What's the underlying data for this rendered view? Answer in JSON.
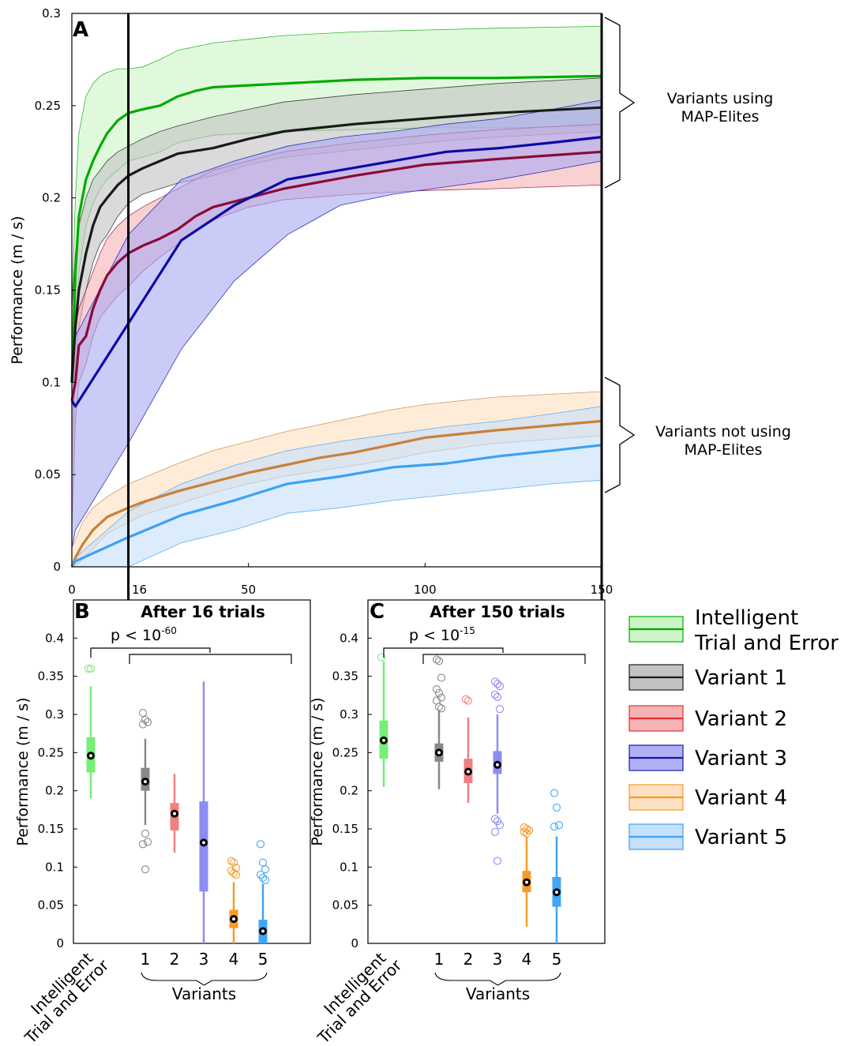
{
  "chart_data": [
    {
      "panel": "A",
      "type": "line",
      "ylabel": "Performance (m / s)",
      "xlim": [
        0,
        150
      ],
      "ylim": [
        0,
        0.3
      ],
      "xticks": [
        0,
        16,
        50,
        100,
        150
      ],
      "xtick_labels": [
        "0",
        "16",
        "50",
        "100",
        "150"
      ],
      "yticks": [
        0,
        0.05,
        0.1,
        0.15,
        0.2,
        0.25,
        0.3
      ],
      "ytick_labels": [
        "0",
        "0.05",
        "0.1",
        "0.15",
        "0.2",
        "0.25",
        "0.3"
      ],
      "vline_x": 16,
      "series": [
        {
          "name": "Intelligent Trial and Error",
          "color": "#00aa00",
          "fill": "#ccf5c7",
          "x": [
            0,
            1,
            2,
            4,
            6,
            8,
            10,
            13,
            16,
            20,
            25,
            30,
            35,
            40,
            50,
            60,
            80,
            100,
            120,
            150
          ],
          "y": [
            0.1,
            0.16,
            0.19,
            0.21,
            0.22,
            0.228,
            0.235,
            0.242,
            0.246,
            0.248,
            0.25,
            0.255,
            0.258,
            0.26,
            0.261,
            0.262,
            0.264,
            0.265,
            0.265,
            0.266
          ],
          "lo": [
            0.05,
            0.13,
            0.16,
            0.185,
            0.197,
            0.205,
            0.21,
            0.215,
            0.22,
            0.222,
            0.225,
            0.23,
            0.232,
            0.234,
            0.235,
            0.236,
            0.237,
            0.238,
            0.238,
            0.239
          ],
          "hi": [
            0.14,
            0.2,
            0.235,
            0.255,
            0.262,
            0.266,
            0.268,
            0.27,
            0.27,
            0.271,
            0.275,
            0.28,
            0.282,
            0.284,
            0.286,
            0.288,
            0.29,
            0.291,
            0.292,
            0.293
          ]
        },
        {
          "name": "Variant 1",
          "color": "#1a1a1a",
          "fill": "#c2c2c2",
          "x": [
            0,
            1,
            2,
            4,
            6,
            8,
            10,
            13,
            16,
            20,
            25,
            30,
            40,
            50,
            60,
            80,
            100,
            120,
            150
          ],
          "y": [
            0.1,
            0.13,
            0.15,
            0.17,
            0.185,
            0.195,
            0.2,
            0.207,
            0.212,
            0.216,
            0.22,
            0.224,
            0.227,
            0.232,
            0.236,
            0.24,
            0.243,
            0.246,
            0.249
          ],
          "lo": [
            0.05,
            0.11,
            0.13,
            0.15,
            0.165,
            0.175,
            0.18,
            0.19,
            0.197,
            0.202,
            0.205,
            0.208,
            0.212,
            0.218,
            0.222,
            0.226,
            0.23,
            0.233,
            0.236
          ],
          "hi": [
            0.14,
            0.17,
            0.185,
            0.2,
            0.21,
            0.215,
            0.22,
            0.225,
            0.228,
            0.232,
            0.236,
            0.239,
            0.244,
            0.248,
            0.252,
            0.256,
            0.259,
            0.262,
            0.265
          ]
        },
        {
          "name": "Variant 2",
          "color": "#8a0a3a",
          "fill": "#f5b3b6",
          "x": [
            0,
            1,
            2,
            4,
            6,
            8,
            10,
            13,
            16,
            20,
            25,
            30,
            35,
            40,
            50,
            60,
            80,
            100,
            120,
            150
          ],
          "y": [
            0.09,
            0.1,
            0.12,
            0.125,
            0.14,
            0.15,
            0.158,
            0.165,
            0.17,
            0.174,
            0.178,
            0.183,
            0.19,
            0.195,
            0.2,
            0.205,
            0.212,
            0.218,
            0.221,
            0.225
          ],
          "lo": [
            0.02,
            0.08,
            0.1,
            0.11,
            0.125,
            0.135,
            0.14,
            0.147,
            0.152,
            0.16,
            0.168,
            0.175,
            0.182,
            0.188,
            0.195,
            0.199,
            0.202,
            0.204,
            0.205,
            0.207
          ],
          "hi": [
            0.12,
            0.13,
            0.14,
            0.15,
            0.16,
            0.17,
            0.178,
            0.185,
            0.19,
            0.195,
            0.2,
            0.205,
            0.21,
            0.215,
            0.22,
            0.225,
            0.23,
            0.234,
            0.237,
            0.24
          ]
        },
        {
          "name": "Variant 3",
          "color": "#0a0aa8",
          "fill": "#a8a8f3",
          "x": [
            0,
            1,
            16,
            31,
            46,
            61,
            76,
            91,
            106,
            121,
            136,
            150
          ],
          "y": [
            0.09,
            0.087,
            0.132,
            0.177,
            0.196,
            0.21,
            0.215,
            0.22,
            0.225,
            0.227,
            0.23,
            0.233
          ],
          "lo": [
            0.01,
            0.02,
            0.067,
            0.118,
            0.155,
            0.18,
            0.196,
            0.202,
            0.206,
            0.21,
            0.215,
            0.22
          ],
          "hi": [
            0.12,
            0.125,
            0.18,
            0.21,
            0.22,
            0.228,
            0.233,
            0.236,
            0.24,
            0.243,
            0.248,
            0.253
          ]
        },
        {
          "name": "Variant 4",
          "color": "#c8803a",
          "fill": "#fde0c0",
          "x": [
            0,
            1,
            3,
            6,
            10,
            16,
            20,
            30,
            40,
            50,
            60,
            70,
            80,
            90,
            100,
            120,
            150
          ],
          "y": [
            0.0,
            0.005,
            0.012,
            0.02,
            0.027,
            0.032,
            0.035,
            0.041,
            0.046,
            0.051,
            0.055,
            0.059,
            0.062,
            0.066,
            0.07,
            0.074,
            0.079
          ],
          "lo": [
            0.0,
            0.0,
            0.004,
            0.01,
            0.018,
            0.024,
            0.028,
            0.034,
            0.04,
            0.045,
            0.049,
            0.052,
            0.055,
            0.058,
            0.062,
            0.067,
            0.071
          ],
          "hi": [
            0.01,
            0.015,
            0.024,
            0.032,
            0.038,
            0.045,
            0.048,
            0.056,
            0.063,
            0.068,
            0.073,
            0.077,
            0.081,
            0.085,
            0.088,
            0.092,
            0.095
          ]
        },
        {
          "name": "Variant 5",
          "color": "#3fa0f0",
          "fill": "#c4e0fa",
          "x": [
            0,
            1,
            16,
            31,
            46,
            61,
            76,
            91,
            106,
            121,
            136,
            150
          ],
          "y": [
            0.0,
            0.003,
            0.016,
            0.028,
            0.036,
            0.045,
            0.049,
            0.054,
            0.056,
            0.06,
            0.063,
            0.066
          ],
          "lo": [
            0.0,
            0.0,
            0.0,
            0.013,
            0.02,
            0.029,
            0.032,
            0.036,
            0.039,
            0.042,
            0.045,
            0.047
          ],
          "hi": [
            0.0,
            0.005,
            0.03,
            0.045,
            0.055,
            0.063,
            0.068,
            0.072,
            0.076,
            0.079,
            0.083,
            0.087
          ]
        }
      ],
      "annotations": [
        "Variants using MAP-Elites",
        "Variants not using MAP-Elites"
      ]
    },
    {
      "panel": "B",
      "type": "box",
      "title": "After 16 trials",
      "ylabel": "Performance (m / s)",
      "ylim": [
        0,
        0.45
      ],
      "yticks": [
        0,
        0.05,
        0.1,
        0.15,
        0.2,
        0.25,
        0.3,
        0.35,
        0.4
      ],
      "ytick_labels": [
        "0",
        "0.05",
        "0.1",
        "0.15",
        "0.2",
        "0.25",
        "0.3",
        "0.35",
        "0.4"
      ],
      "significance": "p < 10",
      "significance_exp": "-60",
      "boxes": [
        {
          "label": "Intelligent Trial and Error",
          "color": "#77ee77",
          "median": 0.246,
          "q1": 0.224,
          "q3": 0.27,
          "wlo": 0.19,
          "whi": 0.337,
          "outliers": [
            0.36,
            0.36
          ]
        },
        {
          "label": "1",
          "color": "#888888",
          "median": 0.212,
          "q1": 0.2,
          "q3": 0.23,
          "wlo": 0.155,
          "whi": 0.268,
          "outliers": [
            0.302,
            0.293,
            0.29,
            0.287,
            0.144,
            0.133,
            0.13,
            0.097
          ]
        },
        {
          "label": "2",
          "color": "#f08080",
          "median": 0.17,
          "q1": 0.148,
          "q3": 0.184,
          "wlo": 0.119,
          "whi": 0.222,
          "outliers": []
        },
        {
          "label": "3",
          "color": "#8c8cf5",
          "median": 0.132,
          "q1": 0.068,
          "q3": 0.186,
          "wlo": 0.0,
          "whi": 0.343,
          "outliers": []
        },
        {
          "label": "4",
          "color": "#f59b2a",
          "median": 0.032,
          "q1": 0.02,
          "q3": 0.044,
          "wlo": 0.0,
          "whi": 0.08,
          "outliers": [
            0.108,
            0.106,
            0.099,
            0.095,
            0.092,
            0.09
          ]
        },
        {
          "label": "5",
          "color": "#42a5f5",
          "median": 0.016,
          "q1": 0.0,
          "q3": 0.031,
          "wlo": 0.0,
          "whi": 0.078,
          "outliers": [
            0.13,
            0.106,
            0.097,
            0.09,
            0.086,
            0.083
          ]
        }
      ],
      "group_label": "Variants"
    },
    {
      "panel": "C",
      "type": "box",
      "title": "After 150 trials",
      "ylabel": "Performance (m / s)",
      "ylim": [
        0,
        0.45
      ],
      "yticks": [
        0,
        0.05,
        0.1,
        0.15,
        0.2,
        0.25,
        0.3,
        0.35,
        0.4
      ],
      "ytick_labels": [
        "0",
        "0.05",
        "0.1",
        "0.15",
        "0.2",
        "0.25",
        "0.3",
        "0.35",
        "0.4"
      ],
      "significance": "p < 10",
      "significance_exp": "-15",
      "boxes": [
        {
          "label": "Intelligent Trial and Error",
          "color": "#77ee77",
          "median": 0.266,
          "q1": 0.242,
          "q3": 0.292,
          "wlo": 0.205,
          "whi": 0.37,
          "outliers": [
            0.375
          ]
        },
        {
          "label": "1",
          "color": "#888888",
          "median": 0.25,
          "q1": 0.238,
          "q3": 0.262,
          "wlo": 0.202,
          "whi": 0.305,
          "outliers": [
            0.372,
            0.37,
            0.348,
            0.333,
            0.328,
            0.322,
            0.318,
            0.31,
            0.308
          ]
        },
        {
          "label": "2",
          "color": "#f08080",
          "median": 0.225,
          "q1": 0.21,
          "q3": 0.242,
          "wlo": 0.184,
          "whi": 0.296,
          "outliers": [
            0.32,
            0.318
          ]
        },
        {
          "label": "3",
          "color": "#8c8cf5",
          "median": 0.234,
          "q1": 0.222,
          "q3": 0.252,
          "wlo": 0.17,
          "whi": 0.3,
          "outliers": [
            0.343,
            0.34,
            0.337,
            0.326,
            0.323,
            0.307,
            0.163,
            0.16,
            0.155,
            0.146,
            0.108
          ]
        },
        {
          "label": "4",
          "color": "#f59b2a",
          "median": 0.08,
          "q1": 0.067,
          "q3": 0.095,
          "wlo": 0.022,
          "whi": 0.14,
          "outliers": [
            0.152,
            0.15,
            0.148,
            0.146,
            0.144
          ]
        },
        {
          "label": "5",
          "color": "#42a5f5",
          "median": 0.067,
          "q1": 0.048,
          "q3": 0.087,
          "wlo": 0.0,
          "whi": 0.14,
          "outliers": [
            0.197,
            0.178,
            0.155,
            0.153
          ]
        }
      ],
      "group_label": "Variants"
    }
  ],
  "legend": [
    {
      "label_lines": [
        "Intelligent",
        "Trial and Error"
      ],
      "color": "#00aa00",
      "fill": "#ccf5c7"
    },
    {
      "label_lines": [
        "Variant 1"
      ],
      "color": "#1a1a1a",
      "fill": "#c2c2c2"
    },
    {
      "label_lines": [
        "Variant 2"
      ],
      "color": "#e03030",
      "fill": "#f5b3b6"
    },
    {
      "label_lines": [
        "Variant 3"
      ],
      "color": "#1a1aa8",
      "fill": "#b0b0f5"
    },
    {
      "label_lines": [
        "Variant 4"
      ],
      "color": "#f59b2a",
      "fill": "#fde0c0"
    },
    {
      "label_lines": [
        "Variant 5"
      ],
      "color": "#3fa0f0",
      "fill": "#c4e0fa"
    }
  ],
  "category_label_lines": [
    "Intelligent",
    "Trial and Error"
  ]
}
